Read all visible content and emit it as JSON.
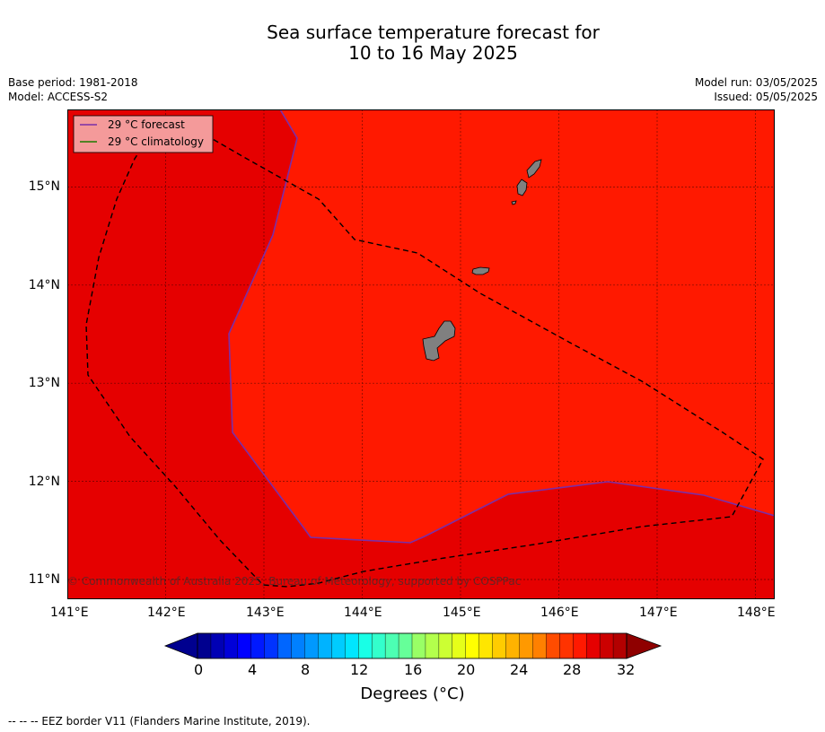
{
  "title": {
    "line1": "Sea surface temperature forecast for",
    "line2": "10 to 16 May 2025"
  },
  "meta": {
    "base_period": "Base period: 1981-2018",
    "model": "Model: ACCESS-S2",
    "model_run": "Model run: 03/05/2025",
    "issued": "Issued: 05/05/2025"
  },
  "map": {
    "extent": {
      "lon": [
        141.0,
        148.2
      ],
      "lat": [
        10.8,
        15.8
      ]
    },
    "colors": {
      "zone_30_32": "#e50000",
      "zone_31_32": "#ff1900",
      "land": "#808080",
      "forecast_line": "#7a2ea8",
      "eez": "#000000"
    },
    "lon_ticks": [
      "141°E",
      "142°E",
      "143°E",
      "144°E",
      "145°E",
      "146°E",
      "147°E",
      "148°E"
    ],
    "lat_ticks": [
      "11°N",
      "12°N",
      "13°N",
      "14°N",
      "15°N"
    ],
    "copyright": "© Commonwealth of Australia 2025, Bureau of Meteorology, supported by COSPPac"
  },
  "legend": {
    "forecast_label": "29 °C  forecast",
    "climatology_label": "29 °C  climatology",
    "forecast_color": "#7a2ea8",
    "climatology_color": "#1d7a00"
  },
  "colorbar": {
    "tick_labels": [
      "0",
      "4",
      "8",
      "12",
      "16",
      "20",
      "24",
      "28",
      "32"
    ],
    "label": "Degrees ($^\\circ$C)",
    "label_display": "Degrees (°C)",
    "colors": [
      "#00008f",
      "#0000b4",
      "#0000d9",
      "#0000ff",
      "#0019ff",
      "#0033ff",
      "#004cff",
      "#0066ff",
      "#0080ff",
      "#0099ff",
      "#00b3ff",
      "#00ccff",
      "#00e6ff",
      "#19ffe6",
      "#33ffcc",
      "#4cffb3",
      "#66ff99",
      "#80ff80",
      "#99ff66",
      "#b3ff4c",
      "#ccff33",
      "#e6ff19",
      "#ffff00",
      "#ffe600",
      "#ffcc00",
      "#ffb300",
      "#ff9900",
      "#ff8000",
      "#ff6600",
      "#ff4c00",
      "#ff3300",
      "#ff1900",
      "#e50000",
      "#cc0000",
      "#b30000"
    ],
    "under_color": "#00008f",
    "over_color": "#8f0000"
  },
  "footnote": "--  --  -- EEZ border V11 (Flanders Marine Institute, 2019)."
}
